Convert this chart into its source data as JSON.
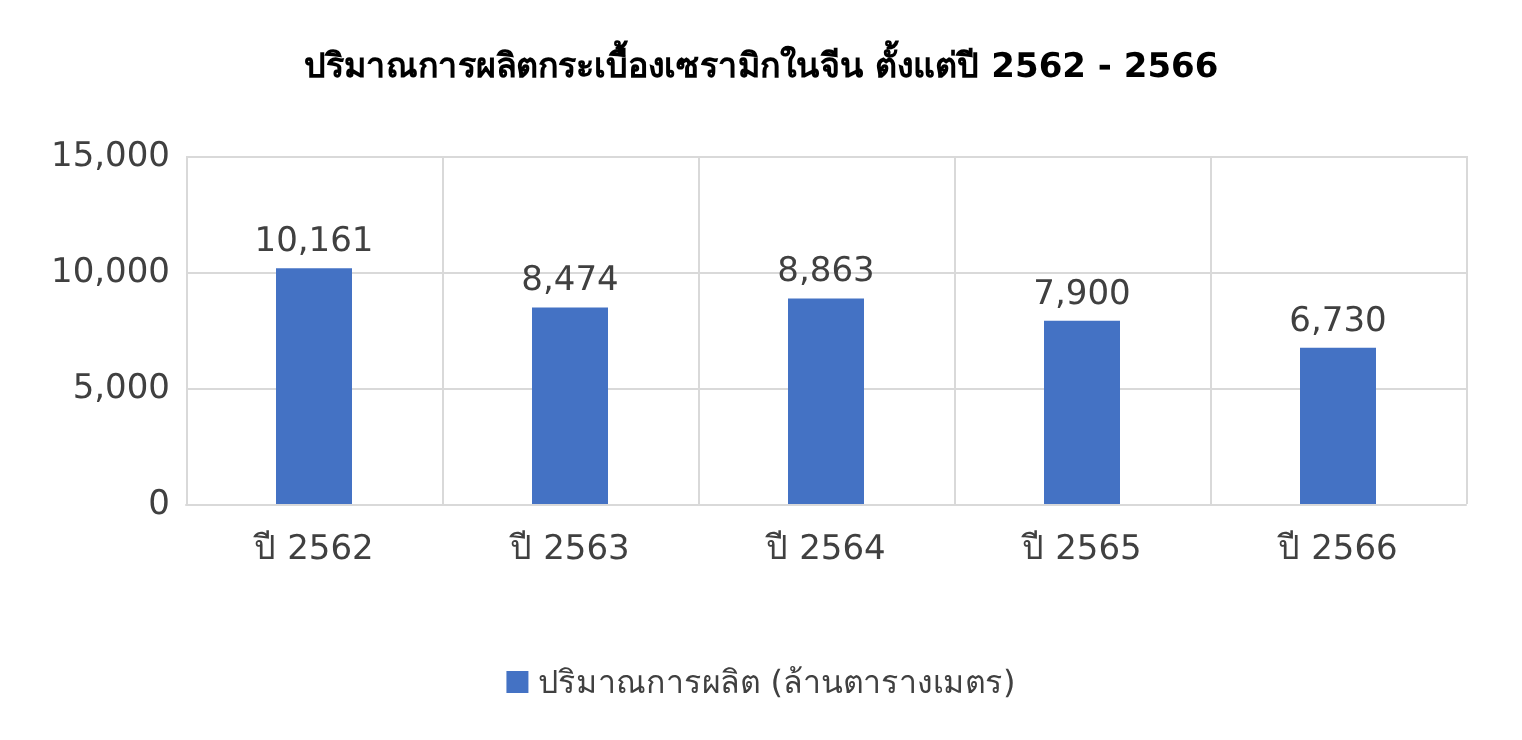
{
  "chart_data": {
    "type": "bar",
    "title": "ปริมาณการผลิตกระเบื้องเซรามิกในจีน ตั้งแต่ปี 2562 - 2566",
    "categories": [
      "ปี 2562",
      "ปี 2563",
      "ปี 2564",
      "ปี 2565",
      "ปี 2566"
    ],
    "series": [
      {
        "name": "ปริมาณการผลิต (ล้านตารางเมตร)",
        "color": "#4472c4",
        "values": [
          10161,
          8474,
          8863,
          7900,
          6730
        ],
        "value_labels": [
          "10,161",
          "8,474",
          "8,863",
          "7,900",
          "6,730"
        ]
      }
    ],
    "ylim": [
      0,
      15000
    ],
    "yticks": [
      0,
      {
        "value": 5000,
        "label": "5,000"
      },
      {
        "value": 10000,
        "label": "10,000"
      },
      {
        "value": 15000,
        "label": "15,000"
      }
    ],
    "grid": true,
    "legend": "bottom"
  }
}
